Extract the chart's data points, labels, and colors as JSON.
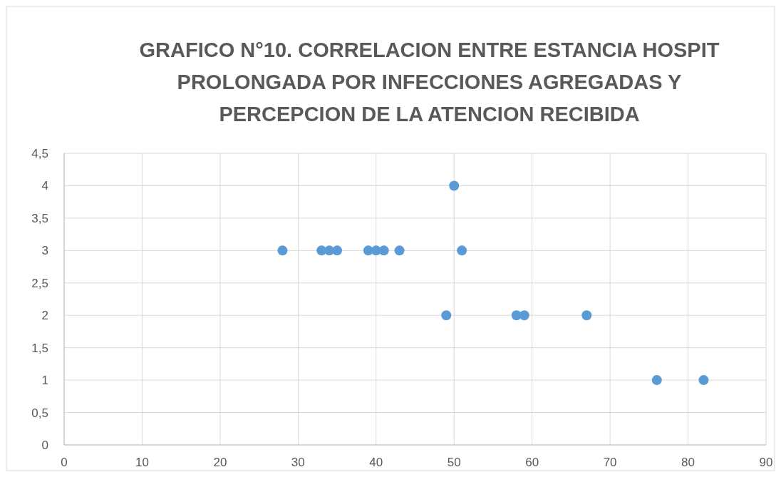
{
  "chart_data": {
    "type": "scatter",
    "title": "GRAFICO N°10. CORRELACION ENTRE ESTANCIA HOSPIT PROLONGADA POR INFECCIONES AGREGADAS Y PERCEPCION DE LA ATENCION RECIBIDA",
    "x": [
      28,
      33,
      34,
      35,
      39,
      40,
      41,
      43,
      50,
      51,
      49,
      58,
      59,
      67,
      76,
      82
    ],
    "values": [
      3,
      3,
      3,
      3,
      3,
      3,
      3,
      3,
      4,
      3,
      2,
      2,
      2,
      2,
      1,
      1
    ],
    "color": "#5b9bd5",
    "marker": "circle",
    "grid": true,
    "xlim": [
      0,
      90
    ],
    "xticks": [
      0,
      10,
      20,
      30,
      40,
      50,
      60,
      70,
      80,
      90
    ],
    "ylim": [
      0,
      4.5
    ],
    "yticks": [
      0,
      {
        "value": 0.5,
        "label": "0,5"
      },
      1,
      {
        "value": 1.5,
        "label": "1,5"
      },
      2,
      {
        "value": 2.5,
        "label": "2,5"
      },
      3,
      {
        "value": 3.5,
        "label": "3,5"
      },
      4,
      {
        "value": 4.5,
        "label": "4,5"
      }
    ]
  }
}
